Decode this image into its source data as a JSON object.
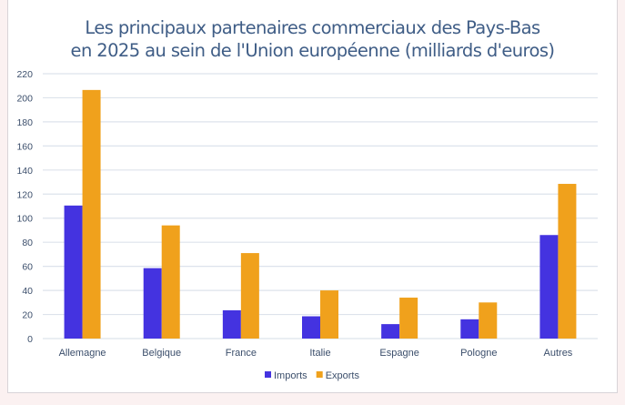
{
  "chart_data": {
    "type": "bar",
    "title": "Les principaux partenaires commerciaux des Pays-Bas en 2025 au sein de l'Union européenne (milliards d'euros)",
    "title_lines": [
      "Les principaux partenaires commerciaux des Pays-Bas",
      "en 2025 au sein de l'Union européenne (milliards d'euros)"
    ],
    "categories": [
      "Allemagne",
      "Belgique",
      "France",
      "Italie",
      "Espagne",
      "Pologne",
      "Autres"
    ],
    "series": [
      {
        "name": "Imports",
        "color": "#4433e0",
        "values": [
          110.5,
          58.5,
          23.5,
          18.5,
          12,
          16,
          86
        ]
      },
      {
        "name": "Exports",
        "color": "#f0a11c",
        "values": [
          206.5,
          94,
          71,
          40,
          34,
          30,
          128.5
        ]
      }
    ],
    "ylim": [
      0,
      220
    ],
    "yticks": [
      0,
      20,
      40,
      60,
      80,
      100,
      120,
      140,
      160,
      180,
      200,
      220
    ],
    "grid": true,
    "legend_position": "bottom"
  }
}
